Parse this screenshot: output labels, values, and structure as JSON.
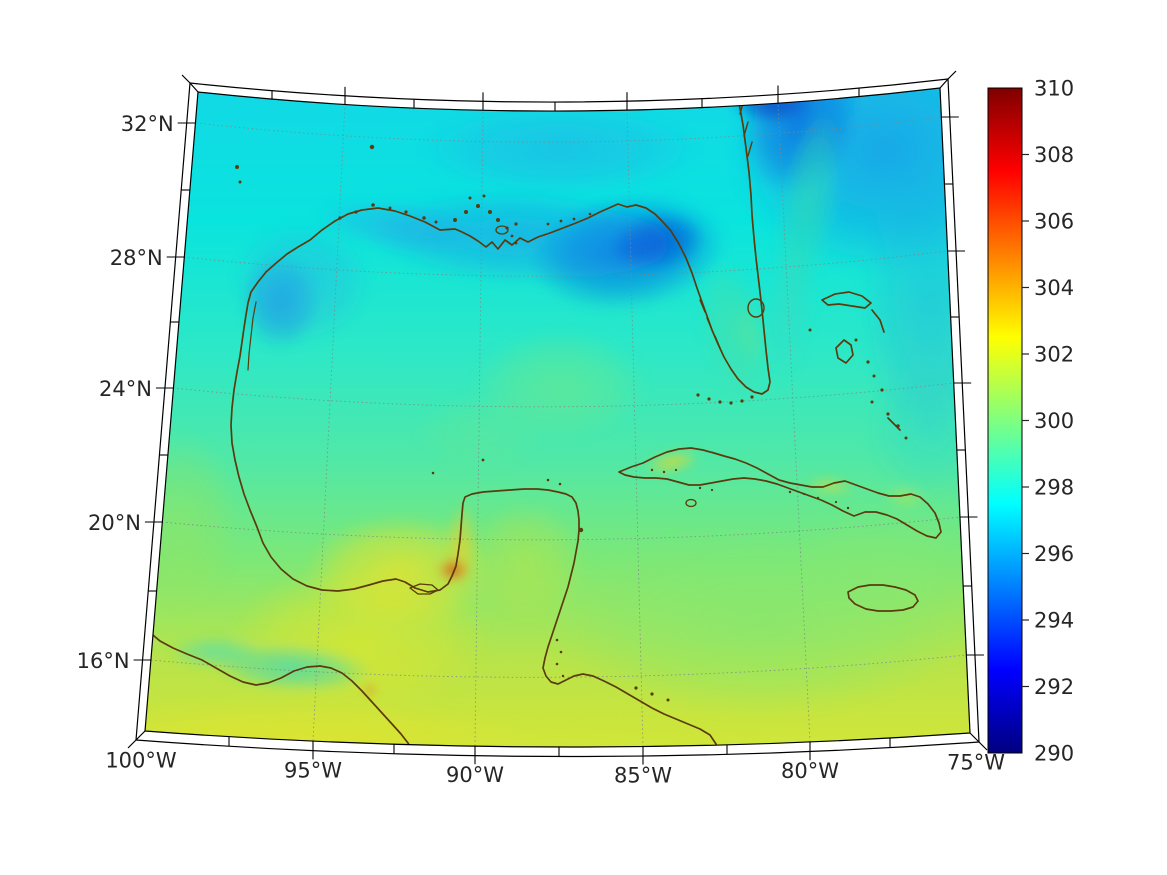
{
  "figure": {
    "background": "#ffffff",
    "coastline_color": "#5b3a0c",
    "gridline_color": "#8a8a8a",
    "frame_color": "#000000"
  },
  "axes": {
    "latitude": {
      "tick_labels": [
        "32°N",
        "28°N",
        "24°N",
        "20°N",
        "16°N"
      ]
    },
    "longitude": {
      "tick_labels": [
        "100°W",
        "95°W",
        "90°W",
        "85°W",
        "80°W",
        "75°W"
      ]
    }
  },
  "colorbar": {
    "tick_labels": [
      "310",
      "308",
      "306",
      "304",
      "302",
      "300",
      "298",
      "296",
      "294",
      "292",
      "290"
    ],
    "min": 290,
    "max": 310,
    "colormap": "jet"
  },
  "chart_data": {
    "type": "heatmap",
    "projection": "conic map with curved graticule; approximate extent 100°W–75°W, 14°N–33°N",
    "x_tick_labels": [
      "100°W",
      "95°W",
      "90°W",
      "85°W",
      "80°W",
      "75°W"
    ],
    "y_tick_labels": [
      "32°N",
      "28°N",
      "24°N",
      "20°N",
      "16°N"
    ],
    "grid": "dotted graticule, 4° latitude spacing, 5° longitude spacing",
    "colorbar": {
      "min": 290,
      "max": 310,
      "tick_step": 2,
      "colormap": "jet"
    },
    "field_samples": [
      {
        "lon": -98.0,
        "lat": 31.0,
        "value": 297.5
      },
      {
        "lon": -97.0,
        "lat": 28.0,
        "value": 295.5
      },
      {
        "lon": -93.0,
        "lat": 29.5,
        "value": 296.0
      },
      {
        "lon": -90.0,
        "lat": 29.3,
        "value": 294.5
      },
      {
        "lon": -84.5,
        "lat": 29.0,
        "value": 294.0
      },
      {
        "lon": -92.0,
        "lat": 25.0,
        "value": 298.0
      },
      {
        "lon": -87.5,
        "lat": 23.5,
        "value": 299.5
      },
      {
        "lon": -96.0,
        "lat": 22.0,
        "value": 298.0
      },
      {
        "lon": -84.4,
        "lat": 22.6,
        "value": 300.5
      },
      {
        "lon": -90.7,
        "lat": 19.1,
        "value": 304.5
      },
      {
        "lon": -91.5,
        "lat": 18.8,
        "value": 302.0
      },
      {
        "lon": -95.5,
        "lat": 16.5,
        "value": 301.0
      },
      {
        "lon": -85.0,
        "lat": 21.5,
        "value": 299.0
      },
      {
        "lon": -77.0,
        "lat": 20.5,
        "value": 299.5
      },
      {
        "lon": -79.0,
        "lat": 31.5,
        "value": 293.5
      },
      {
        "lon": -79.5,
        "lat": 28.5,
        "value": 298.0
      },
      {
        "lon": -76.0,
        "lat": 26.0,
        "value": 296.0
      }
    ],
    "features": [
      "cool blue band (294-296) along northern Gulf coast and NE Gulf big-bend",
      "deep blue Atlantic water east of Florida/Georgia with warmer Gulf-Stream streak",
      "turquoise (~298) open Gulf with mild warmer patch mid-basin",
      "warm yellow (301-302) over southern Mexico and Bay of Campeche",
      "orange-red hotspot (~305) near Campeche coast",
      "light green (~299-300) Caribbean south of Cuba",
      "yellow strip along northwest Cuba coast"
    ],
    "landmarks": [
      "Gulf of Mexico",
      "Florida",
      "Yucatan Peninsula",
      "Cuba",
      "Jamaica",
      "Bahamas",
      "Central America coast"
    ]
  }
}
